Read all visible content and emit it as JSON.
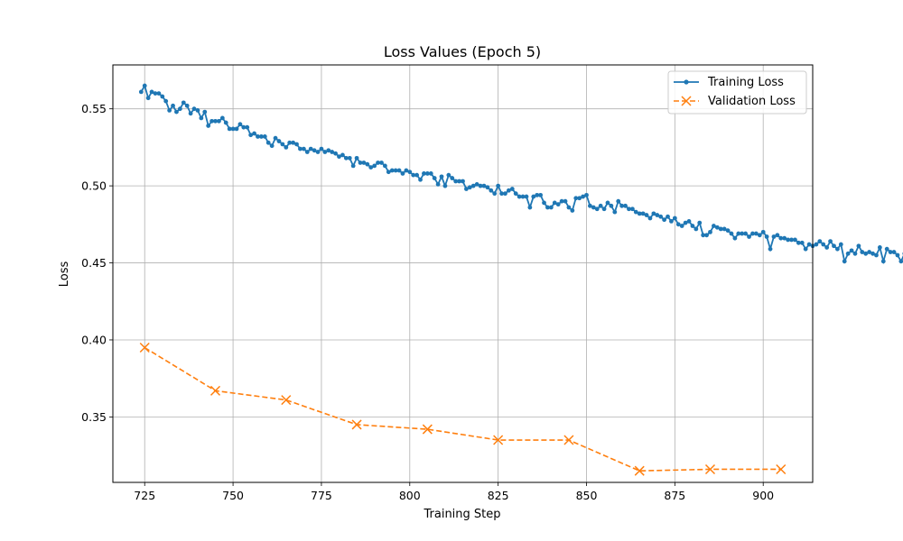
{
  "chart_data": {
    "type": "line",
    "title": "Loss Values (Epoch 5)",
    "xlabel": "Training Step",
    "ylabel": "Loss",
    "xlim": [
      716,
      914
    ],
    "ylim": [
      0.3075,
      0.5785
    ],
    "xticks": [
      725,
      750,
      775,
      800,
      825,
      850,
      875,
      900
    ],
    "yticks": [
      0.35,
      0.4,
      0.45,
      0.5,
      0.55
    ],
    "grid": true,
    "legend_position": "top-right",
    "series": [
      {
        "name": "Training Loss",
        "color": "#1f77b4",
        "style": "solid",
        "marker": "dot",
        "x_start": 724,
        "x_step": 1,
        "values": [
          0.561,
          0.565,
          0.557,
          0.561,
          0.56,
          0.56,
          0.558,
          0.555,
          0.549,
          0.552,
          0.548,
          0.55,
          0.554,
          0.552,
          0.547,
          0.55,
          0.549,
          0.544,
          0.548,
          0.539,
          0.542,
          0.542,
          0.542,
          0.544,
          0.541,
          0.537,
          0.537,
          0.537,
          0.54,
          0.538,
          0.538,
          0.533,
          0.534,
          0.532,
          0.532,
          0.532,
          0.528,
          0.526,
          0.531,
          0.529,
          0.527,
          0.525,
          0.528,
          0.528,
          0.527,
          0.524,
          0.524,
          0.522,
          0.524,
          0.523,
          0.522,
          0.524,
          0.522,
          0.523,
          0.522,
          0.521,
          0.519,
          0.52,
          0.518,
          0.518,
          0.513,
          0.518,
          0.515,
          0.515,
          0.514,
          0.512,
          0.513,
          0.515,
          0.515,
          0.513,
          0.509,
          0.51,
          0.51,
          0.51,
          0.508,
          0.51,
          0.509,
          0.507,
          0.507,
          0.504,
          0.508,
          0.508,
          0.508,
          0.505,
          0.501,
          0.506,
          0.5,
          0.507,
          0.505,
          0.503,
          0.503,
          0.503,
          0.498,
          0.499,
          0.5,
          0.501,
          0.5,
          0.5,
          0.499,
          0.497,
          0.495,
          0.5,
          0.495,
          0.495,
          0.497,
          0.498,
          0.495,
          0.493,
          0.493,
          0.493,
          0.486,
          0.493,
          0.494,
          0.494,
          0.489,
          0.486,
          0.486,
          0.489,
          0.488,
          0.49,
          0.49,
          0.486,
          0.484,
          0.492,
          0.492,
          0.493,
          0.494,
          0.487,
          0.486,
          0.485,
          0.487,
          0.485,
          0.489,
          0.487,
          0.483,
          0.49,
          0.487,
          0.487,
          0.485,
          0.485,
          0.483,
          0.482,
          0.482,
          0.481,
          0.479,
          0.482,
          0.481,
          0.48,
          0.478,
          0.48,
          0.477,
          0.479,
          0.475,
          0.474,
          0.476,
          0.477,
          0.474,
          0.472,
          0.476,
          0.468,
          0.468,
          0.47,
          0.474,
          0.473,
          0.472,
          0.472,
          0.471,
          0.469,
          0.466,
          0.469,
          0.469,
          0.469,
          0.467,
          0.469,
          0.469,
          0.468,
          0.47,
          0.467,
          0.459,
          0.467,
          0.468,
          0.466,
          0.466,
          0.465,
          0.465,
          0.465,
          0.463,
          0.463,
          0.459,
          0.462,
          0.461,
          0.462,
          0.464,
          0.462,
          0.46,
          0.464,
          0.461,
          0.459,
          0.462,
          0.451,
          0.456,
          0.458,
          0.456,
          0.461,
          0.457,
          0.456,
          0.457,
          0.456,
          0.455,
          0.46,
          0.451,
          0.459,
          0.457,
          0.457,
          0.455,
          0.451,
          0.456,
          0.451,
          0.45,
          0.46
        ]
      },
      {
        "name": "Validation Loss",
        "color": "#ff7f0e",
        "style": "dashed",
        "marker": "x",
        "x": [
          725,
          745,
          765,
          785,
          805,
          825,
          845,
          865,
          885,
          905
        ],
        "values": [
          0.395,
          0.367,
          0.361,
          0.345,
          0.342,
          0.335,
          0.335,
          0.315,
          0.316,
          0.316
        ]
      }
    ]
  }
}
